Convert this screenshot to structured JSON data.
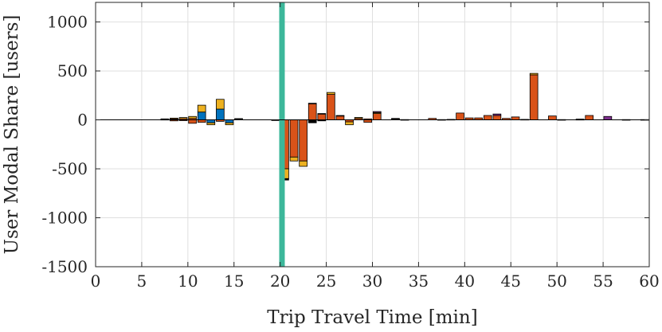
{
  "chart_data": {
    "type": "bar",
    "stacked": true,
    "xlabel": "Trip Travel Time [min]",
    "ylabel": "User Modal Share [users]",
    "xlim": [
      0,
      60
    ],
    "ylim": [
      -1500,
      1200
    ],
    "xticks": [
      0,
      5,
      10,
      15,
      20,
      25,
      30,
      35,
      40,
      45,
      50,
      55,
      60
    ],
    "yticks": [
      -1500,
      -1000,
      -500,
      0,
      500,
      1000
    ],
    "grid": true,
    "bar_width": 0.85,
    "vertical_marker": {
      "x": 20.2,
      "color": "#3cb79a"
    },
    "colors": {
      "blue": "#0072bd",
      "orange": "#d95319",
      "yellow": "#edb120",
      "purple": "#7e2f8e",
      "green": "#77ac30",
      "black": "#000000"
    },
    "bars": [
      {
        "x": 7.5,
        "segments": [
          {
            "color": "orange",
            "value": 5
          },
          {
            "color": "yellow",
            "value": 5
          }
        ]
      },
      {
        "x": 8.5,
        "segments": [
          {
            "color": "orange",
            "value": 10
          },
          {
            "color": "yellow",
            "value": 8
          },
          {
            "color": "orange",
            "value": -10
          }
        ]
      },
      {
        "x": 9.5,
        "segments": [
          {
            "color": "orange",
            "value": 12
          },
          {
            "color": "yellow",
            "value": 12
          },
          {
            "color": "orange",
            "value": -8
          }
        ]
      },
      {
        "x": 10.5,
        "segments": [
          {
            "color": "orange",
            "value": 15
          },
          {
            "color": "yellow",
            "value": 20
          },
          {
            "color": "orange",
            "value": -35
          }
        ]
      },
      {
        "x": 11.5,
        "segments": [
          {
            "color": "blue",
            "value": 80
          },
          {
            "color": "yellow",
            "value": 70
          },
          {
            "color": "orange",
            "value": -25
          }
        ]
      },
      {
        "x": 12.5,
        "segments": [
          {
            "color": "blue",
            "value": -30
          },
          {
            "color": "yellow",
            "value": -20
          }
        ]
      },
      {
        "x": 13.5,
        "segments": [
          {
            "color": "blue",
            "value": 110
          },
          {
            "color": "yellow",
            "value": 100
          },
          {
            "color": "orange",
            "value": -15
          }
        ]
      },
      {
        "x": 14.5,
        "segments": [
          {
            "color": "blue",
            "value": -30
          },
          {
            "color": "yellow",
            "value": -20
          }
        ]
      },
      {
        "x": 15.5,
        "segments": [
          {
            "color": "orange",
            "value": 8
          },
          {
            "color": "yellow",
            "value": 5
          }
        ]
      },
      {
        "x": 19.5,
        "segments": [
          {
            "color": "orange",
            "value": -5
          }
        ]
      },
      {
        "x": 20.5,
        "segments": [
          {
            "color": "orange",
            "value": -500
          },
          {
            "color": "yellow",
            "value": -100
          },
          {
            "color": "black",
            "value": -15
          }
        ]
      },
      {
        "x": 21.5,
        "segments": [
          {
            "color": "orange",
            "value": -380
          },
          {
            "color": "yellow",
            "value": -40
          }
        ]
      },
      {
        "x": 22.5,
        "segments": [
          {
            "color": "orange",
            "value": -420
          },
          {
            "color": "yellow",
            "value": -55
          }
        ]
      },
      {
        "x": 23.5,
        "segments": [
          {
            "color": "orange",
            "value": 165
          },
          {
            "color": "yellow",
            "value": 5
          },
          {
            "color": "black",
            "value": -30
          }
        ]
      },
      {
        "x": 24.5,
        "segments": [
          {
            "color": "orange",
            "value": 60
          },
          {
            "color": "yellow",
            "value": 5
          },
          {
            "color": "black",
            "value": -10
          }
        ]
      },
      {
        "x": 25.5,
        "segments": [
          {
            "color": "orange",
            "value": 260
          },
          {
            "color": "yellow",
            "value": 20
          }
        ]
      },
      {
        "x": 26.5,
        "segments": [
          {
            "color": "orange",
            "value": 40
          },
          {
            "color": "yellow",
            "value": 5
          }
        ]
      },
      {
        "x": 27.5,
        "segments": [
          {
            "color": "orange",
            "value": -20
          },
          {
            "color": "yellow",
            "value": -30
          }
        ]
      },
      {
        "x": 28.5,
        "segments": [
          {
            "color": "orange",
            "value": 15
          },
          {
            "color": "yellow",
            "value": 10
          }
        ]
      },
      {
        "x": 29.5,
        "segments": [
          {
            "color": "orange",
            "value": 10
          },
          {
            "color": "orange",
            "value": -25
          }
        ]
      },
      {
        "x": 30.5,
        "segments": [
          {
            "color": "orange",
            "value": 65
          },
          {
            "color": "yellow",
            "value": 10
          },
          {
            "color": "purple",
            "value": 10
          }
        ]
      },
      {
        "x": 32.5,
        "segments": [
          {
            "color": "orange",
            "value": 10
          },
          {
            "color": "black",
            "value": 5
          }
        ]
      },
      {
        "x": 33.5,
        "segments": [
          {
            "color": "orange",
            "value": 3
          }
        ]
      },
      {
        "x": 36.5,
        "segments": [
          {
            "color": "orange",
            "value": 15
          }
        ]
      },
      {
        "x": 37.5,
        "segments": [
          {
            "color": "orange",
            "value": 3
          }
        ]
      },
      {
        "x": 38.5,
        "segments": [
          {
            "color": "orange",
            "value": 5
          }
        ]
      },
      {
        "x": 39.5,
        "segments": [
          {
            "color": "orange",
            "value": 70
          }
        ]
      },
      {
        "x": 40.5,
        "segments": [
          {
            "color": "orange",
            "value": 20
          }
        ]
      },
      {
        "x": 41.5,
        "segments": [
          {
            "color": "orange",
            "value": 20
          }
        ]
      },
      {
        "x": 42.5,
        "segments": [
          {
            "color": "orange",
            "value": 45
          }
        ]
      },
      {
        "x": 43.5,
        "segments": [
          {
            "color": "orange",
            "value": 45
          },
          {
            "color": "purple",
            "value": 15
          }
        ]
      },
      {
        "x": 44.5,
        "segments": [
          {
            "color": "orange",
            "value": 15
          }
        ]
      },
      {
        "x": 45.5,
        "segments": [
          {
            "color": "orange",
            "value": 30
          }
        ]
      },
      {
        "x": 46.5,
        "segments": [
          {
            "color": "orange",
            "value": 5
          }
        ]
      },
      {
        "x": 47.5,
        "segments": [
          {
            "color": "orange",
            "value": 460
          },
          {
            "color": "yellow",
            "value": 15
          }
        ]
      },
      {
        "x": 49.5,
        "segments": [
          {
            "color": "orange",
            "value": 40
          }
        ]
      },
      {
        "x": 50.5,
        "segments": [
          {
            "color": "orange",
            "value": 3
          }
        ]
      },
      {
        "x": 52.5,
        "segments": [
          {
            "color": "orange",
            "value": 5
          },
          {
            "color": "purple",
            "value": 3
          }
        ]
      },
      {
        "x": 53.5,
        "segments": [
          {
            "color": "orange",
            "value": 45
          }
        ]
      },
      {
        "x": 55.5,
        "segments": [
          {
            "color": "purple",
            "value": 35
          }
        ]
      },
      {
        "x": 57.5,
        "segments": [
          {
            "color": "orange",
            "value": 3
          }
        ]
      },
      {
        "x": 59.5,
        "segments": [
          {
            "color": "orange",
            "value": 3
          }
        ]
      }
    ]
  }
}
